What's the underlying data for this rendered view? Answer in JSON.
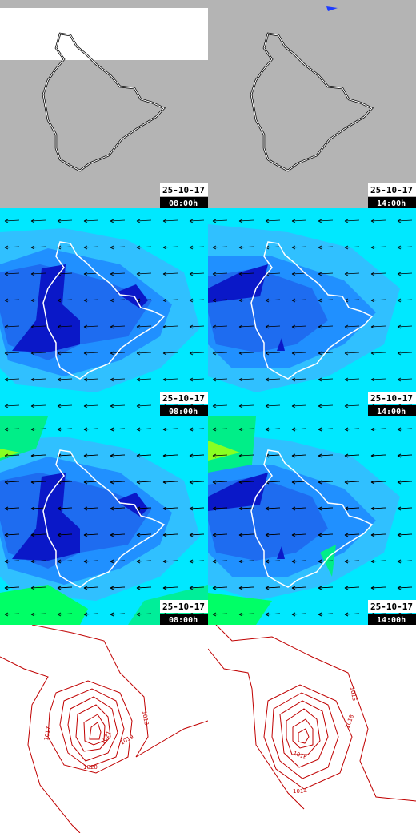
{
  "panels": [
    {
      "date": "25-10-17",
      "time": "08:00h"
    },
    {
      "date": "25-10-17",
      "time": "14:00h"
    },
    {
      "date": "25-10-17",
      "time": "08:00h"
    },
    {
      "date": "25-10-17",
      "time": "14:00h"
    },
    {
      "date": "25-10-17",
      "time": "08:00h"
    },
    {
      "date": "25-10-17",
      "time": "14:00h"
    }
  ],
  "contour_labels": {
    "left": [
      "1017",
      "1018",
      "1021",
      "1019",
      "1020"
    ],
    "right": [
      "1015",
      "1018",
      "1016",
      "1014"
    ]
  }
}
